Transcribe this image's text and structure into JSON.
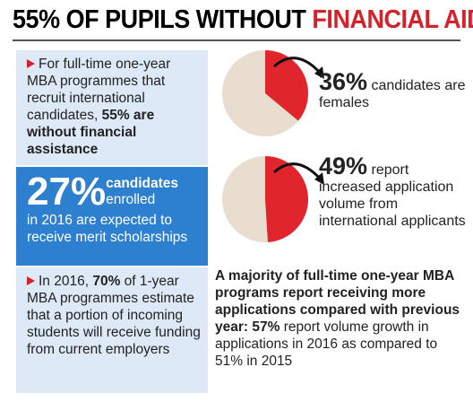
{
  "title": {
    "black": "55% OF PUPILS WITHOUT",
    "red": "FINANCIAL AID"
  },
  "boxes": [
    {
      "runs": [
        {
          "text": "For full-time one-year MBA programmes that recruit international candidates, "
        },
        {
          "text": "55% are without financial assistance",
          "bold": true
        }
      ]
    },
    {
      "big": "27%",
      "small_bold": "candidates",
      "small": "enrolled",
      "text": "in 2016 are expected to receive merit scholarships"
    },
    {
      "runs": [
        {
          "text": "In 2016, "
        },
        {
          "text": "70%",
          "bold": true
        },
        {
          "text": " of 1-year MBA programmes estimate that a portion of incoming students will receive funding from current employers"
        }
      ]
    }
  ],
  "pies": [
    {
      "value": 36,
      "value_label": "36%",
      "text": "candidates are females",
      "color": "#e0262c",
      "rest_color": "#e8ddce"
    },
    {
      "value": 49,
      "value_label": "49%",
      "text": "report increased application volume from international applicants",
      "color": "#e0262c",
      "rest_color": "#e8ddce"
    }
  ],
  "bottom": {
    "runs": [
      {
        "text": "A majority of full-time one-year MBA programs report receiving more applications compared with previous year: 57%",
        "bold": true
      },
      {
        "text": " report volume growth in applications in 2016 as compared to 51% in 2015"
      }
    ]
  }
}
